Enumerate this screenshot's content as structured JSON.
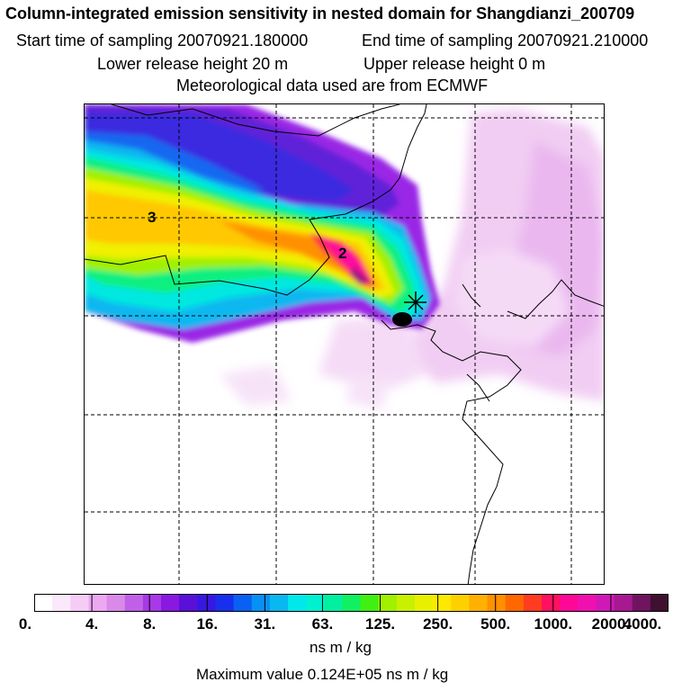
{
  "header": {
    "title": "Column-integrated emission sensitivity in nested domain for Shangdianzi_200709",
    "start_time": "Start time of sampling 20070921.180000",
    "end_time": "End time of sampling 20070921.210000",
    "lower_height": "Lower release height   20 m",
    "upper_height": "Upper release height    0 m",
    "met_data": "Meteorological data used are from ECMWF"
  },
  "map": {
    "contour_labels": [
      "3",
      "2"
    ]
  },
  "legend": {
    "tick_labels": [
      "0.",
      "4.",
      "8.",
      "16.",
      "31.",
      "63.",
      "125.",
      "250.",
      "500.",
      "1000.",
      "2000.",
      "4000."
    ],
    "units": "ns m / kg",
    "max_value": "Maximum value  0.124E+05 ns m / kg",
    "colors": [
      "#ffffff",
      "#fbe8fb",
      "#f5ccf5",
      "#eda8f2",
      "#d98ae8",
      "#c060e8",
      "#a838e8",
      "#8a18e0",
      "#5a10d8",
      "#3818e0",
      "#1830ee",
      "#0a60f2",
      "#0890f5",
      "#08b8f0",
      "#00e8ec",
      "#00f0d0",
      "#00f0a0",
      "#10f060",
      "#40f010",
      "#a0f000",
      "#c8f000",
      "#e8f000",
      "#ffe800",
      "#ffd000",
      "#ffb000",
      "#ff9000",
      "#ff6800",
      "#ff3c20",
      "#ff1060",
      "#ff0898",
      "#f010b0",
      "#d018b8",
      "#a81890",
      "#701460",
      "#401030"
    ]
  }
}
